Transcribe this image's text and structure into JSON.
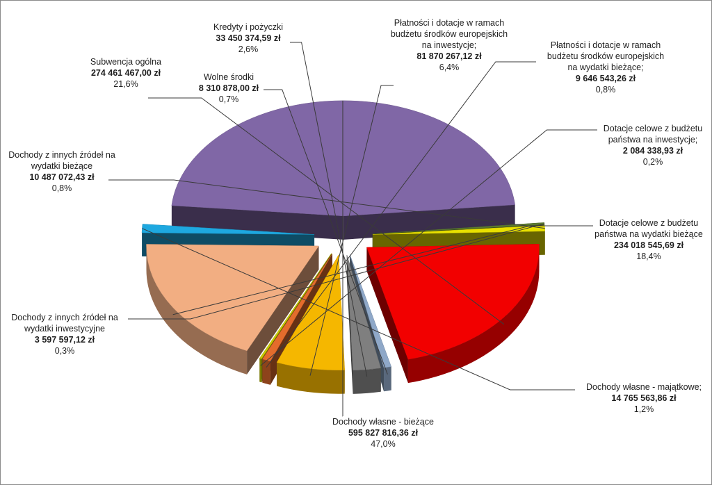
{
  "chart_data": {
    "type": "pie",
    "style": "3d-exploded",
    "slices": [
      {
        "name_lines": [
          "Płatności i dotacje w ramach",
          "budżetu środków europejskich",
          "na inwestycje;"
        ],
        "amount": "81 870 267,12 zł",
        "pct": "6,4%",
        "value": 6.4,
        "color": "#F5B700"
      },
      {
        "name_lines": [
          "Płatności i dotacje w ramach",
          "budżetu środków europejskich",
          "na wydatki bieżące;"
        ],
        "amount": "9 646 543,26 zł",
        "pct": "0,8%",
        "value": 0.8,
        "color": "#E46C2C"
      },
      {
        "name_lines": [
          "Dotacje celowe z budżetu",
          "państwa na inwestycje;"
        ],
        "amount": "2 084 338,93 zł",
        "pct": "0,2%",
        "value": 0.2,
        "color": "#C9C900"
      },
      {
        "name_lines": [
          "Dotacje celowe z budżetu",
          "państwa na wydatki bieżące"
        ],
        "amount": "234 018 545,69 zł",
        "pct": "18,4%",
        "value": 18.4,
        "color": "#F2AE82"
      },
      {
        "name_lines": [
          "Dochody własne - majątkowe;"
        ],
        "amount": "14 765 563,86 zł",
        "pct": "1,2%",
        "value": 1.2,
        "color": "#1EA8E0"
      },
      {
        "name_lines": [
          "Dochody własne - bieżące"
        ],
        "amount": "595 827 816,36 zł",
        "pct": "47,0%",
        "value": 47.0,
        "color": "#8067A6"
      },
      {
        "name_lines": [
          "Dochody z innych źródeł na",
          "wydatki inwestycyjne"
        ],
        "amount": "3 597 597,12 zł",
        "pct": "0,3%",
        "value": 0.3,
        "color": "#5C7A30"
      },
      {
        "name_lines": [
          "Dochody z innych źródeł na",
          "wydatki  bieżące"
        ],
        "amount": "10 487 072,43 zł",
        "pct": "0,8%",
        "value": 0.8,
        "color": "#E8E000"
      },
      {
        "name_lines": [
          "Subwencja ogólna"
        ],
        "amount": "274 461 467,00 zł",
        "pct": "21,6%",
        "value": 21.6,
        "color": "#F20000"
      },
      {
        "name_lines": [
          "Wolne środki"
        ],
        "amount": "8 310 878,00 zł",
        "pct": "0,7%",
        "value": 0.7,
        "color": "#8FA8C8"
      },
      {
        "name_lines": [
          "Kredyty i pożyczki"
        ],
        "amount": "33 450 374,59 zł",
        "pct": "2,6%",
        "value": 2.6,
        "color": "#7F7F7F"
      }
    ]
  }
}
